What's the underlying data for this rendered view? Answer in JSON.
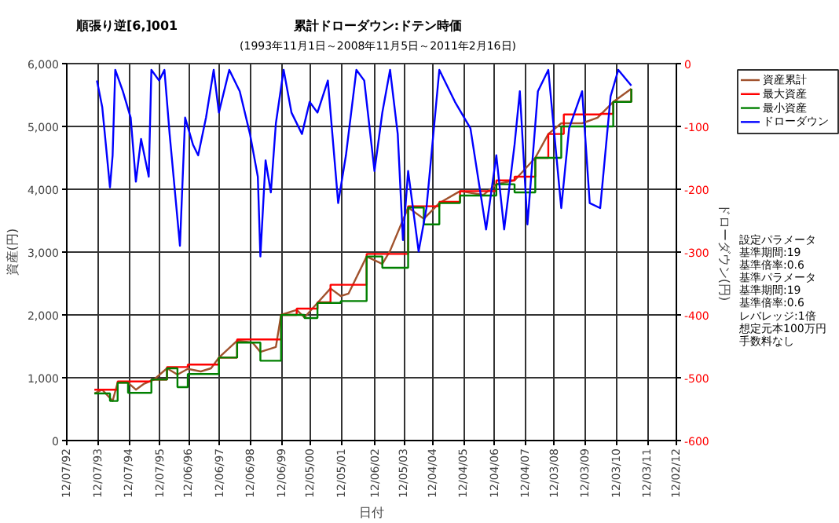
{
  "chart_data": {
    "type": "line",
    "title": "累計ドローダウン:ドテン時価",
    "subtitle": "(1993年11月1日～2008年11月5日～2011年2月16日)",
    "xlabel": "日付",
    "ylabel": "資産(円)",
    "y2label": "ドローダウン(円)",
    "annotations": [
      "順張り逆[6,]001",
      "設定パラメータ",
      "  基準期間:19",
      "  基準倍率:0.6",
      "基準パラメータ",
      "  基準期間:19",
      "  基準倍率:0.6",
      "レバレッジ:1倍",
      "想定元本100万円",
      "手数料なし"
    ],
    "xlim": [
      "1992-07-12",
      "2012-02-12"
    ],
    "xticks": [
      {
        "value": "1992-07-12",
        "label": "12/07/92"
      },
      {
        "value": "1993-07-12",
        "label": "12/07/93"
      },
      {
        "value": "1994-07-12",
        "label": "12/07/94"
      },
      {
        "value": "1995-07-12",
        "label": "12/07/95"
      },
      {
        "value": "1996-06-12",
        "label": "12/06/96"
      },
      {
        "value": "1997-06-12",
        "label": "12/06/97"
      },
      {
        "value": "1998-06-12",
        "label": "12/06/98"
      },
      {
        "value": "1999-06-12",
        "label": "12/06/99"
      },
      {
        "value": "2000-05-12",
        "label": "12/05/00"
      },
      {
        "value": "2001-05-12",
        "label": "12/05/01"
      },
      {
        "value": "2002-06-12",
        "label": "12/06/02"
      },
      {
        "value": "2003-05-12",
        "label": "12/05/03"
      },
      {
        "value": "2004-04-12",
        "label": "12/04/04"
      },
      {
        "value": "2005-04-12",
        "label": "12/04/05"
      },
      {
        "value": "2006-04-12",
        "label": "12/04/06"
      },
      {
        "value": "2007-04-12",
        "label": "12/04/07"
      },
      {
        "value": "2008-03-12",
        "label": "12/03/08"
      },
      {
        "value": "2009-03-12",
        "label": "12/03/09"
      },
      {
        "value": "2010-03-12",
        "label": "12/03/10"
      },
      {
        "value": "2011-03-12",
        "label": "12/03/11"
      },
      {
        "value": "2012-02-12",
        "label": "12/02/12"
      }
    ],
    "ylim": [
      0,
      6000
    ],
    "yticks": [
      0,
      {
        "value": 1000,
        "label": "1,000"
      },
      {
        "value": 2000,
        "label": "2,000"
      },
      {
        "value": 3000,
        "label": "3,000"
      },
      {
        "value": 4000,
        "label": "4,000"
      },
      {
        "value": 5000,
        "label": "5,000"
      },
      {
        "value": 6000,
        "label": "6,000"
      }
    ],
    "y2lim": [
      -600,
      0
    ],
    "y2ticks": [
      -600,
      -500,
      -400,
      -300,
      -200,
      -100,
      0
    ],
    "grid": true,
    "legend": "right",
    "line_style": "solid",
    "series": [
      {
        "name": "資産累計",
        "color": "#a0522d",
        "x": [
          "1993-06",
          "1993-09",
          "1994-01",
          "1994-03",
          "1994-07",
          "1994-10",
          "1995-01",
          "1995-05",
          "1995-10",
          "1996-02",
          "1996-06",
          "1996-11",
          "1997-03",
          "1997-06",
          "1998-01",
          "1998-07",
          "1998-10",
          "1999-04",
          "1999-06",
          "1999-12",
          "2000-03",
          "2000-08",
          "2001-01",
          "2001-05",
          "2001-08",
          "2002-03",
          "2002-09",
          "2002-12",
          "2003-07",
          "2004-01",
          "2004-07",
          "2005-03",
          "2005-12",
          "2006-05",
          "2006-12",
          "2007-08",
          "2008-01",
          "2008-06",
          "2009-02",
          "2009-08",
          "2010-02",
          "2010-09"
        ],
        "values": [
          750,
          810,
          630,
          920,
          920,
          810,
          900,
          970,
          1150,
          1050,
          1140,
          1100,
          1150,
          1320,
          1590,
          1560,
          1410,
          1490,
          2000,
          2080,
          1960,
          2190,
          2420,
          2300,
          2340,
          2930,
          2810,
          3020,
          3710,
          3530,
          3780,
          3970,
          3910,
          4080,
          4140,
          4500,
          4880,
          5050,
          5050,
          5140,
          5390,
          5600
        ]
      },
      {
        "name": "最大資産",
        "type": "step",
        "color": "#ff0000",
        "x": [
          "1993-06",
          "1994-03",
          "1995-04",
          "1995-10",
          "1996-06",
          "1997-06",
          "1998-01",
          "1999-06",
          "1999-12",
          "2000-08",
          "2001-01",
          "2002-03",
          "2003-07",
          "2004-07",
          "2005-03",
          "2006-05",
          "2006-12",
          "2007-08",
          "2008-01",
          "2008-07",
          "2009-09",
          "2010-02",
          "2010-09"
        ],
        "values": [
          810,
          940,
          970,
          1170,
          1210,
          1320,
          1610,
          2000,
          2100,
          2200,
          2480,
          2970,
          3730,
          3800,
          3970,
          4140,
          4200,
          4500,
          4880,
          5190,
          5200,
          5390,
          5600
        ]
      },
      {
        "name": "最小資産",
        "type": "step",
        "color": "#008000",
        "x": [
          "1993-06",
          "1993-12",
          "1994-03",
          "1994-07",
          "1995-04",
          "1995-10",
          "1996-02",
          "1996-06",
          "1997-06",
          "1998-01",
          "1998-10",
          "1999-06",
          "2000-03",
          "2000-08",
          "2001-05",
          "2002-03",
          "2002-09",
          "2003-07",
          "2004-01",
          "2004-07",
          "2005-03",
          "2006-05",
          "2006-12",
          "2007-08",
          "2008-06",
          "2009-02",
          "2010-02",
          "2010-09"
        ],
        "values": [
          750,
          630,
          920,
          760,
          970,
          1150,
          850,
          1060,
          1320,
          1560,
          1270,
          2000,
          1950,
          2190,
          2220,
          2930,
          2750,
          3710,
          3440,
          3780,
          3900,
          4080,
          3950,
          4500,
          5000,
          5000,
          5390,
          5600
        ]
      },
      {
        "name": "ドローダウン",
        "axis": "y2",
        "color": "#0000ff",
        "x": [
          "1993-07",
          "1993-09",
          "1993-12",
          "1994-01",
          "1994-02",
          "1994-05",
          "1994-08",
          "1994-10",
          "1994-12",
          "1995-03",
          "1995-04",
          "1995-07",
          "1995-09",
          "1995-11",
          "1996-03",
          "1996-05",
          "1996-08",
          "1996-10",
          "1997-01",
          "1997-04",
          "1997-06",
          "1997-10",
          "1998-02",
          "1998-06",
          "1998-09",
          "1998-10",
          "1998-12",
          "1999-02",
          "1999-04",
          "1999-07",
          "1999-10",
          "2000-02",
          "2000-05",
          "2000-08",
          "2000-12",
          "2001-04",
          "2001-07",
          "2001-11",
          "2002-02",
          "2002-06",
          "2002-09",
          "2002-12",
          "2003-03",
          "2003-05",
          "2003-07",
          "2003-11",
          "2004-02",
          "2004-07",
          "2005-01",
          "2005-07",
          "2006-01",
          "2006-05",
          "2006-08",
          "2006-12",
          "2007-02",
          "2007-05",
          "2007-09",
          "2008-01",
          "2008-06",
          "2008-09",
          "2009-02",
          "2009-05",
          "2009-09",
          "2010-01",
          "2010-04",
          "2010-09"
        ],
        "values": [
          -27,
          -69,
          -197,
          -146,
          -10,
          -44,
          -86,
          -188,
          -120,
          -180,
          -10,
          -27,
          -10,
          -112,
          -290,
          -86,
          -129,
          -146,
          -86,
          -10,
          -78,
          -10,
          -44,
          -112,
          -180,
          -307,
          -154,
          -205,
          -95,
          -10,
          -78,
          -112,
          -61,
          -78,
          -27,
          -222,
          -146,
          -10,
          -27,
          -171,
          -78,
          -10,
          -112,
          -281,
          -171,
          -299,
          -230,
          -10,
          -61,
          -103,
          -264,
          -146,
          -264,
          -129,
          -44,
          -256,
          -44,
          -10,
          -230,
          -103,
          -44,
          -222,
          -230,
          -52,
          -10,
          -35
        ]
      }
    ]
  }
}
